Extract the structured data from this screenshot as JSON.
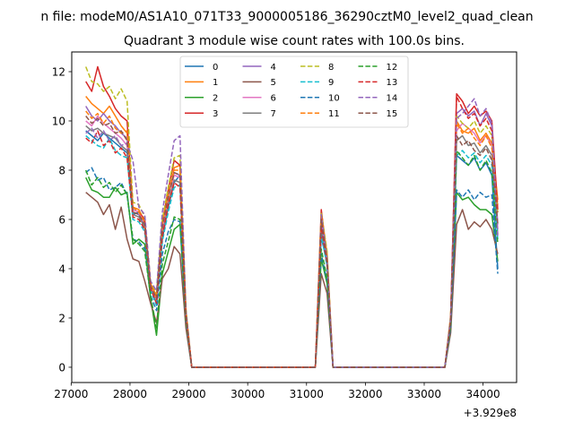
{
  "figure": {
    "suptitle": "n file: modeM0/AS1A10_071T33_9000005186_36290cztM0_level2_quad_clean",
    "title": "Quadrant 3 module wise count rates with 100.0s bins.",
    "offset_label": "+3.929e8"
  },
  "chart_data": {
    "type": "line",
    "title": "Quadrant 3 module wise count rates with 100.0s bins.",
    "xlabel": "",
    "ylabel": "",
    "x_offset": 392900000,
    "xlim": [
      27010,
      34570
    ],
    "ylim": [
      -0.62,
      12.8
    ],
    "x_ticks": [
      27000,
      28000,
      29000,
      30000,
      31000,
      32000,
      33000,
      34000
    ],
    "x_tick_labels": [
      "27000",
      "28000",
      "29000",
      "30000",
      "31000",
      "32000",
      "33000",
      "34000"
    ],
    "y_ticks": [
      0,
      2,
      4,
      6,
      8,
      10,
      12
    ],
    "y_tick_labels": [
      "0",
      "2",
      "4",
      "6",
      "8",
      "10",
      "12"
    ],
    "grid": false,
    "legend": {
      "placement": "top-center",
      "columns": 4
    },
    "x": [
      27250,
      27350,
      27450,
      27550,
      27650,
      27750,
      27850,
      27950,
      28050,
      28150,
      28250,
      28350,
      28450,
      28550,
      28650,
      28750,
      28850,
      28950,
      29050,
      29150,
      31150,
      31250,
      31350,
      31450,
      33350,
      33450,
      33550,
      33650,
      33750,
      33850,
      33950,
      34050,
      34150,
      34250
    ],
    "series": [
      {
        "name": "0",
        "color": "#1f77b4",
        "dash": "solid",
        "values": [
          9.6,
          9.4,
          9.2,
          9.5,
          9.3,
          9.1,
          8.9,
          8.7,
          6.2,
          6.3,
          5.8,
          3.2,
          2.6,
          5.2,
          6.5,
          7.5,
          7.8,
          2.1,
          0,
          0,
          0,
          5.3,
          4.2,
          0,
          0,
          1.8,
          8.6,
          8.4,
          8.2,
          8.5,
          8.0,
          8.3,
          7.8,
          4.0
        ]
      },
      {
        "name": "1",
        "color": "#ff7f0e",
        "dash": "solid",
        "values": [
          11.0,
          10.7,
          10.5,
          10.3,
          10.6,
          10.2,
          9.8,
          9.5,
          6.5,
          6.4,
          5.9,
          3.4,
          2.9,
          5.6,
          6.8,
          8.1,
          8.2,
          2.3,
          0,
          0,
          0,
          6.1,
          4.6,
          0,
          0,
          2.1,
          10.0,
          9.6,
          9.5,
          9.7,
          9.2,
          9.5,
          9.1,
          6.8
        ]
      },
      {
        "name": "2",
        "color": "#2ca02c",
        "dash": "solid",
        "values": [
          7.7,
          7.2,
          7.1,
          6.9,
          6.9,
          7.3,
          7.0,
          7.1,
          5.0,
          5.2,
          5.0,
          2.8,
          1.3,
          3.8,
          4.7,
          5.6,
          5.8,
          1.9,
          0,
          0,
          0,
          4.4,
          3.4,
          0,
          0,
          1.6,
          7.1,
          6.8,
          6.9,
          6.6,
          6.4,
          6.4,
          6.2,
          4.3
        ]
      },
      {
        "name": "3",
        "color": "#d62728",
        "dash": "solid",
        "values": [
          11.6,
          11.2,
          12.2,
          11.4,
          11.0,
          10.5,
          10.2,
          10.0,
          6.4,
          6.3,
          6.0,
          3.3,
          2.6,
          5.9,
          7.2,
          8.4,
          8.2,
          2.2,
          0,
          0,
          0,
          6.4,
          4.5,
          0,
          0,
          2.0,
          11.1,
          10.8,
          10.3,
          10.6,
          10.2,
          10.4,
          10.0,
          6.4
        ]
      },
      {
        "name": "4",
        "color": "#9467bd",
        "dash": "solid",
        "values": [
          10.6,
          10.2,
          10.0,
          10.3,
          10.0,
          9.8,
          9.5,
          9.3,
          6.3,
          6.2,
          5.7,
          3.3,
          2.8,
          5.5,
          6.9,
          7.9,
          7.8,
          2.1,
          0,
          0,
          0,
          6.0,
          4.4,
          0,
          0,
          1.9,
          10.3,
          10.5,
          10.2,
          10.4,
          9.8,
          10.3,
          9.8,
          5.8
        ]
      },
      {
        "name": "5",
        "color": "#8c564b",
        "dash": "solid",
        "values": [
          7.1,
          6.9,
          6.7,
          6.2,
          6.6,
          5.6,
          6.5,
          5.2,
          4.4,
          4.3,
          3.5,
          2.6,
          1.8,
          3.6,
          4.0,
          4.9,
          4.6,
          1.6,
          0,
          0,
          0,
          3.8,
          3.0,
          0,
          0,
          1.4,
          5.8,
          6.4,
          5.6,
          5.9,
          5.7,
          6.0,
          5.6,
          4.6
        ]
      },
      {
        "name": "6",
        "color": "#e377c2",
        "dash": "solid",
        "values": [
          10.0,
          9.8,
          10.2,
          9.9,
          9.7,
          9.5,
          9.3,
          9.0,
          6.4,
          6.3,
          5.8,
          3.3,
          2.7,
          5.6,
          6.9,
          7.8,
          7.7,
          2.1,
          0,
          0,
          0,
          5.9,
          4.3,
          0,
          0,
          1.9,
          9.6,
          9.9,
          9.7,
          9.5,
          9.1,
          9.4,
          9.0,
          5.6
        ]
      },
      {
        "name": "7",
        "color": "#7f7f7f",
        "dash": "solid",
        "values": [
          9.8,
          9.6,
          9.7,
          9.5,
          9.4,
          9.3,
          9.0,
          8.8,
          6.2,
          6.1,
          5.7,
          3.2,
          2.6,
          5.3,
          6.6,
          7.6,
          7.5,
          2.0,
          0,
          0,
          0,
          5.6,
          4.1,
          0,
          0,
          1.8,
          9.2,
          9.4,
          9.0,
          9.1,
          8.7,
          9.0,
          8.6,
          5.4
        ]
      },
      {
        "name": "8",
        "color": "#bcbd22",
        "dash": "dashed",
        "values": [
          12.2,
          11.6,
          11.5,
          11.2,
          11.4,
          10.9,
          11.3,
          10.8,
          6.7,
          6.6,
          6.1,
          3.5,
          3.0,
          6.0,
          7.3,
          8.5,
          8.6,
          2.4,
          0,
          0,
          0,
          6.3,
          4.7,
          0,
          0,
          2.1,
          10.2,
          9.9,
          9.7,
          10.0,
          9.5,
          9.8,
          9.4,
          6.2
        ]
      },
      {
        "name": "9",
        "color": "#17becf",
        "dash": "dashed",
        "values": [
          9.4,
          9.2,
          9.0,
          8.9,
          9.3,
          8.8,
          8.6,
          8.5,
          6.0,
          5.9,
          5.5,
          3.1,
          2.5,
          5.1,
          6.3,
          7.3,
          7.4,
          2.0,
          0,
          0,
          0,
          5.4,
          4.1,
          0,
          0,
          1.8,
          8.6,
          8.8,
          8.5,
          8.7,
          8.3,
          8.6,
          8.2,
          5.2
        ]
      },
      {
        "name": "10",
        "color": "#1f77b4",
        "dash": "dashed",
        "values": [
          7.9,
          8.1,
          7.6,
          7.7,
          7.2,
          7.3,
          7.5,
          7.0,
          5.2,
          5.1,
          4.8,
          2.9,
          2.3,
          4.6,
          5.5,
          6.0,
          5.9,
          1.9,
          0,
          0,
          0,
          4.6,
          3.5,
          0,
          0,
          1.6,
          7.2,
          6.9,
          7.2,
          6.8,
          7.1,
          6.9,
          7.0,
          3.8
        ]
      },
      {
        "name": "11",
        "color": "#ff7f0e",
        "dash": "dashed",
        "values": [
          10.4,
          10.1,
          10.3,
          9.9,
          10.2,
          9.7,
          9.5,
          9.6,
          6.5,
          6.3,
          5.9,
          3.4,
          2.8,
          5.8,
          7.0,
          8.0,
          8.0,
          2.2,
          0,
          0,
          0,
          6.2,
          4.5,
          0,
          0,
          2.0,
          9.9,
          9.5,
          9.7,
          9.3,
          9.0,
          9.4,
          8.9,
          6.6
        ]
      },
      {
        "name": "12",
        "color": "#2ca02c",
        "dash": "dashed",
        "values": [
          8.0,
          7.4,
          7.7,
          7.3,
          7.5,
          7.1,
          7.4,
          7.0,
          5.2,
          5.0,
          4.7,
          2.9,
          1.6,
          4.2,
          5.1,
          6.1,
          6.0,
          1.9,
          0,
          0,
          0,
          4.8,
          3.6,
          0,
          0,
          1.7,
          8.8,
          8.5,
          8.2,
          8.6,
          8.0,
          8.4,
          7.9,
          5.0
        ]
      },
      {
        "name": "13",
        "color": "#d62728",
        "dash": "dashed",
        "values": [
          9.3,
          9.1,
          9.6,
          9.0,
          9.2,
          8.7,
          8.9,
          8.5,
          6.1,
          6.0,
          5.6,
          3.2,
          2.6,
          5.3,
          6.6,
          7.5,
          7.3,
          2.1,
          0,
          0,
          0,
          5.7,
          4.2,
          0,
          0,
          1.9,
          11.0,
          10.5,
          10.1,
          10.3,
          9.8,
          10.1,
          9.6,
          6.3
        ]
      },
      {
        "name": "14",
        "color": "#9467bd",
        "dash": "dashed",
        "values": [
          9.5,
          9.7,
          9.3,
          9.6,
          9.2,
          9.4,
          9.0,
          9.1,
          8.4,
          6.5,
          6.2,
          3.5,
          3.1,
          6.3,
          7.8,
          9.2,
          9.4,
          2.3,
          0,
          0,
          0,
          6.2,
          4.4,
          0,
          0,
          2.0,
          10.1,
          10.3,
          10.6,
          10.9,
          10.2,
          10.5,
          9.9,
          5.3
        ]
      },
      {
        "name": "15",
        "color": "#8c564b",
        "dash": "dashed",
        "values": [
          10.2,
          9.9,
          10.1,
          9.8,
          9.9,
          9.5,
          9.6,
          9.2,
          6.3,
          6.2,
          5.8,
          3.3,
          2.8,
          5.7,
          6.9,
          7.9,
          7.8,
          2.2,
          0,
          0,
          0,
          6.0,
          4.3,
          0,
          0,
          1.9,
          9.4,
          9.0,
          9.2,
          8.8,
          8.6,
          8.9,
          8.4,
          5.8
        ]
      }
    ]
  }
}
